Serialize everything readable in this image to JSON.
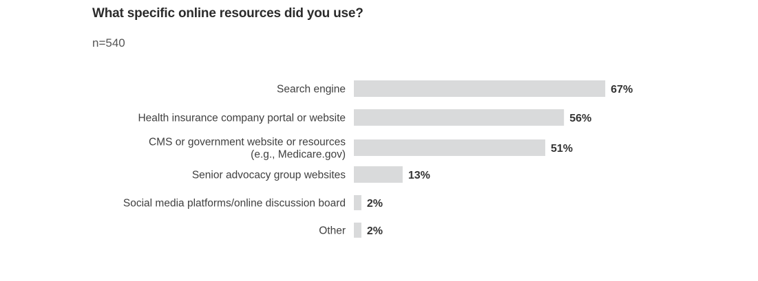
{
  "chart_data": {
    "type": "bar",
    "orientation": "horizontal",
    "title": "What specific online resources did you use?",
    "subtitle": "n=540",
    "categories": [
      [
        "Search engine"
      ],
      [
        "Health insurance company portal or website"
      ],
      [
        "CMS or government website or resources",
        "(e.g., Medicare.gov)"
      ],
      [
        "Senior advocacy group websites"
      ],
      [
        "Social media platforms/online discussion board"
      ],
      [
        "Other"
      ]
    ],
    "values": [
      67,
      56,
      51,
      13,
      2,
      2
    ],
    "value_labels": [
      "67%",
      "56%",
      "51%",
      "13%",
      "2%",
      "2%"
    ],
    "xlim": [
      0,
      100
    ],
    "grid": false,
    "colors": {
      "bar": "#d9dadb",
      "text": "#404040",
      "value_text": "#333333"
    }
  }
}
